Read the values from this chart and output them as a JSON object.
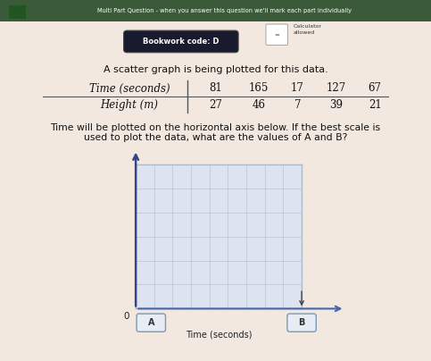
{
  "bg_color": "#f2e8e0",
  "top_banner_color": "#3a5a3a",
  "top_banner_text": "Multi Part Question - when you answer this question we'll mark each part individually",
  "bookwork_code_text": "Bookwork code: D",
  "calculator_text": "Calculator\nallowed",
  "main_text_1": "A scatter graph is being plotted for this data.",
  "time_values": [
    "81",
    "165",
    "17",
    "127",
    "67"
  ],
  "height_values": [
    "27",
    "46",
    "7",
    "39",
    "21"
  ],
  "instruction_line1": "Time will be plotted on the horizontal axis below. If the best scale is",
  "instruction_line2": "used to plot the data, what are the values of A and B?",
  "xlabel": "Time (seconds)",
  "A_label": "A",
  "B_label": "B",
  "graph_bg": "#dde4f0",
  "grid_color": "#b8c4d8",
  "axis_color": "#4466aa",
  "yaxis_color": "#334488",
  "box_fill": "#e8ecf5",
  "box_edge": "#7799bb",
  "n_cols": 9,
  "n_rows": 6,
  "instr_color": "#111111",
  "table_header_color": "#111111",
  "table_data_color": "#111111"
}
